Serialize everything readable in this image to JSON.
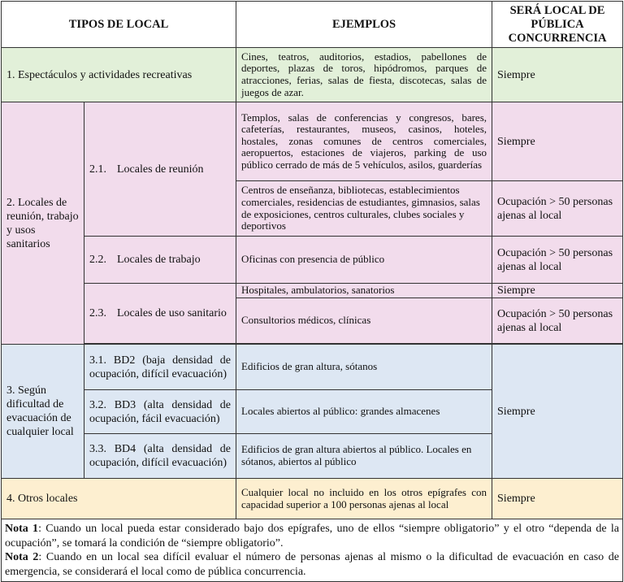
{
  "headers": {
    "tipos": "TIPOS DE LOCAL",
    "ejemplos": "EJEMPLOS",
    "sera": "SERÁ LOCAL DE PÚBLICA CONCURRENCIA"
  },
  "colors": {
    "green": "#e2f0d9",
    "pink": "#f2dcec",
    "blue": "#dde7f3",
    "yellow": "#fdefd0"
  },
  "row1": {
    "tipo": "1. Espectáculos y actividades recreativas",
    "ejemplos": "Cines, teatros, auditorios, estadios, pabellones de deportes, plazas de toros, hipódromos, parques de atracciones, ferias, salas de fiesta, discotecas, salas de juegos de azar.",
    "sera": "Siempre"
  },
  "row2": {
    "tipo": "2. Locales de reunión, trabajo y usos sanitarios",
    "sub1": {
      "num": "2.1.",
      "label": "Locales de reunión",
      "a": {
        "ejemplos": "Templos, salas de conferencias y congresos, bares, cafeterías, restaurantes, museos, casinos, hoteles, hostales, zonas comunes de centros comerciales, aeropuertos, estaciones de viajeros, parking de uso público cerrado de más de 5 vehículos, asilos, guarderías",
        "sera": "Siempre"
      },
      "b": {
        "ejemplos": "Centros de enseñanza, bibliotecas, establecimientos comerciales, residencias de estudiantes, gimnasios, salas de exposiciones, centros culturales, clubes sociales y deportivos",
        "sera": "Ocupación > 50 personas ajenas al local"
      }
    },
    "sub2": {
      "num": "2.2.",
      "label": "Locales de trabajo",
      "ejemplos": "Oficinas con presencia de público",
      "sera": "Ocupación > 50 personas ajenas al local"
    },
    "sub3": {
      "num": "2.3.",
      "label": "Locales de uso sanitario",
      "a": {
        "ejemplos": "Hospitales, ambulatorios, sanatorios",
        "sera": "Siempre"
      },
      "b": {
        "ejemplos": "Consultorios médicos, clínicas",
        "sera": "Ocupación > 50 personas ajenas al local"
      }
    }
  },
  "row3": {
    "tipo": "3. Según dificultad de evacuación de cualquier local",
    "sera": "Siempre",
    "subs": [
      {
        "num": "3.1.",
        "label": "BD2 (baja densidad de ocupación, difícil evacuación)",
        "ejemplos": "Edificios de gran altura, sótanos"
      },
      {
        "num": "3.2.",
        "label": "BD3 (alta densidad de ocupación, fácil evacuación)",
        "ejemplos": "Locales abiertos al público: grandes almacenes"
      },
      {
        "num": "3.3.",
        "label": "BD4 (alta densidad de ocupación, difícil evacuación)",
        "ejemplos": "Edificios de gran altura abiertos al público. Locales en sótanos, abiertos al público"
      }
    ]
  },
  "row4": {
    "tipo": "4. Otros locales",
    "ejemplos": "Cualquier local no incluido en los otros epígrafes con capacidad superior a 100 personas ajenas al local",
    "sera": "Siempre"
  },
  "notes": {
    "n1_label": "Nota 1",
    "n1_text": ": Cuando un local pueda estar considerado bajo dos epígrafes, uno de ellos “siempre obligatorio” y el otro “dependa de la ocupación”, se tomará la condición de “siempre obligatorio”.",
    "n2_label": "Nota 2",
    "n2_text": ": Cuando en un local sea difícil evaluar el número de personas ajenas al mismo o la dificultad de evacuación en caso de emergencia, se considerará el local como de pública concurrencia."
  }
}
